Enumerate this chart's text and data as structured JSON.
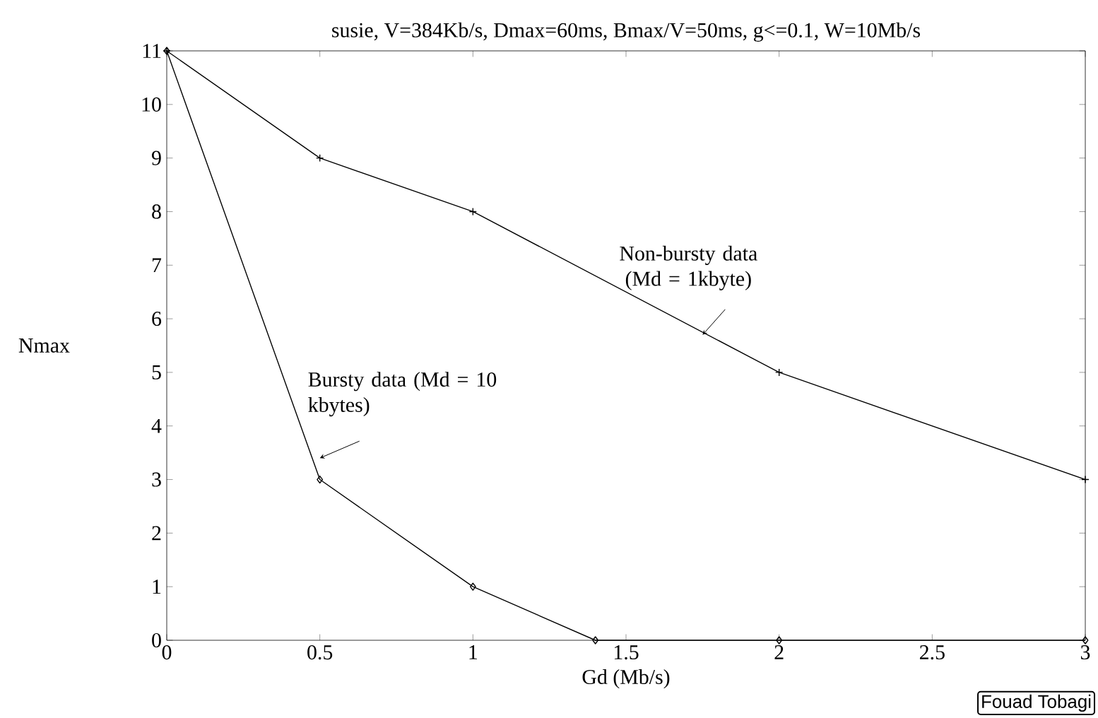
{
  "chart_data": {
    "type": "line",
    "title": "susie, V=384Kb/s, Dmax=60ms, Bmax/V=50ms, g<=0.1, W=10Mb/s",
    "xlabel": "Gd (Mb/s)",
    "ylabel": "Nmax",
    "xlim": [
      0,
      3
    ],
    "ylim": [
      0,
      11
    ],
    "xticks": [
      0,
      0.5,
      1,
      1.5,
      2,
      2.5,
      3
    ],
    "yticks": [
      0,
      1,
      2,
      3,
      4,
      5,
      6,
      7,
      8,
      9,
      10,
      11
    ],
    "grid": false,
    "line_style": "solid",
    "series": [
      {
        "x": [
          0,
          0.5,
          1,
          1.4,
          2,
          3
        ],
        "values": [
          11,
          3,
          1,
          0,
          0,
          0
        ],
        "color": "#000000",
        "marker": "diamond"
      },
      {
        "x": [
          0,
          0.5,
          1,
          2,
          3
        ],
        "values": [
          11,
          9,
          8,
          5,
          3
        ],
        "color": "#000000",
        "marker": "cross"
      }
    ],
    "annotations": [
      {
        "text": "Non-bursty data (Md = 1kbyte)",
        "x": 1.75,
        "y": 5.7
      },
      {
        "text": "Bursty data (Md = 10 kbytes)",
        "x": 0.5,
        "y": 3.4
      },
      "Fouad Tobagi"
    ]
  }
}
